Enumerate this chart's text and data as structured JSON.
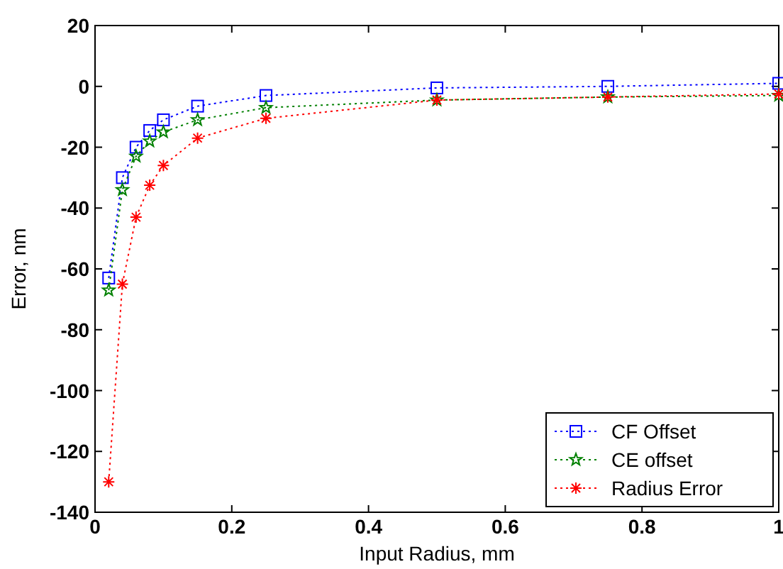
{
  "chart_data": {
    "type": "line",
    "xlabel": "Input Radius, mm",
    "ylabel": "Error, nm",
    "x": [
      0.02,
      0.04,
      0.06,
      0.08,
      0.1,
      0.15,
      0.25,
      0.5,
      0.75,
      1.0
    ],
    "series": [
      {
        "name": "CF Offset",
        "color": "#0000ff",
        "marker": "square",
        "values": [
          -63,
          -30,
          -20,
          -14.5,
          -11,
          -6.5,
          -3,
          -0.5,
          0,
          1
        ]
      },
      {
        "name": "CE offset",
        "color": "#008000",
        "marker": "star",
        "values": [
          -67,
          -34,
          -23,
          -18,
          -15,
          -11,
          -7,
          -4.5,
          -3.5,
          -3
        ]
      },
      {
        "name": "Radius Error",
        "color": "#ff0000",
        "marker": "cross",
        "values": [
          -130,
          -65,
          -43,
          -32.5,
          -26,
          -17,
          -10.5,
          -4.5,
          -3.5,
          -2.5
        ]
      }
    ],
    "xlim": [
      0,
      1
    ],
    "xticks": [
      0,
      0.2,
      0.4,
      0.6,
      0.8,
      1
    ],
    "ylim": [
      -140,
      20
    ],
    "yticks": [
      -140,
      -120,
      -100,
      -80,
      -60,
      -40,
      -20,
      0,
      20
    ],
    "grid": false,
    "legend": "bottom right",
    "line_style": "dotted"
  }
}
